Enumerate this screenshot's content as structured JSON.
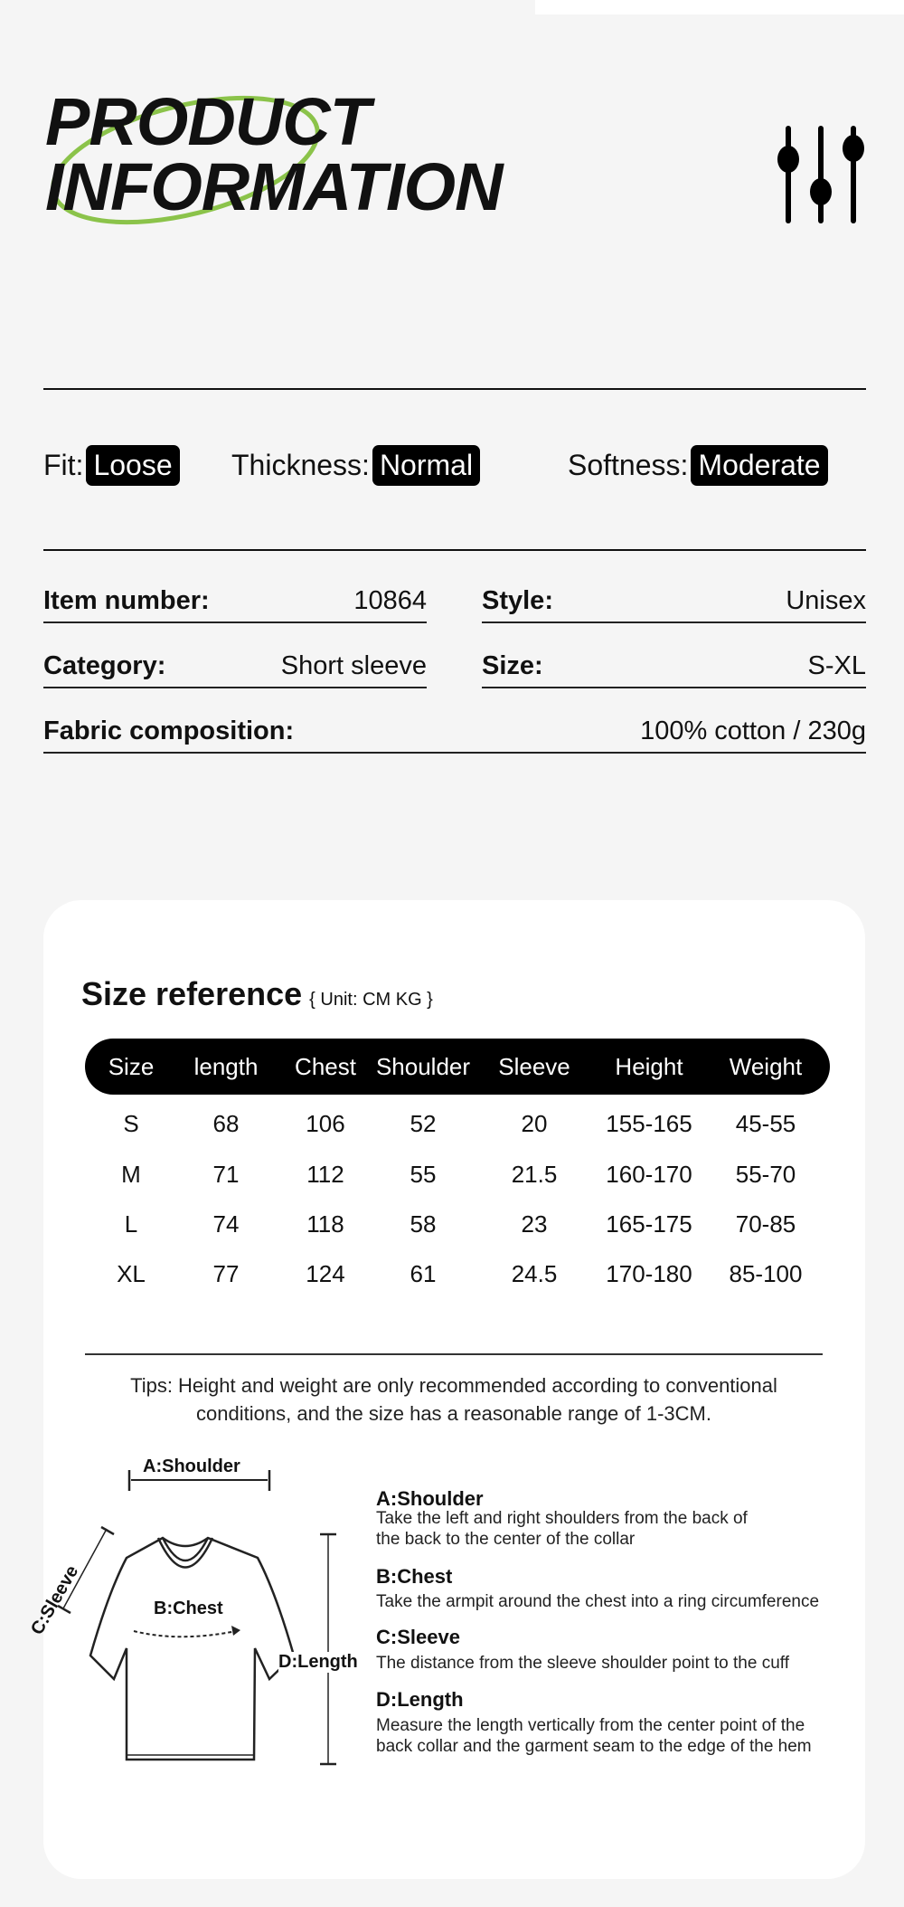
{
  "header": {
    "title_line1": "PRODUCT",
    "title_line2": "INFORMATION",
    "icon": "sliders-icon",
    "accent": "#8bc34a"
  },
  "attributes": [
    {
      "label": "Fit:",
      "value": "Loose"
    },
    {
      "label": "Thickness:",
      "value": "Normal"
    },
    {
      "label": "Softness:",
      "value": "Moderate"
    }
  ],
  "specs": {
    "item_number": {
      "label": "Item number:",
      "value": "10864"
    },
    "style": {
      "label": "Style:",
      "value": "Unisex"
    },
    "category": {
      "label": "Category:",
      "value": "Short sleeve"
    },
    "size": {
      "label": "Size:",
      "value": "S-XL"
    },
    "fabric": {
      "label": "Fabric composition:",
      "value": "100% cotton / 230g"
    }
  },
  "size_reference": {
    "title": "Size reference",
    "unit": "{ Unit: CM KG }",
    "columns": [
      "Size",
      "length",
      "Chest",
      "Shoulder",
      "Sleeve",
      "Height",
      "Weight"
    ],
    "rows": [
      [
        "S",
        "68",
        "106",
        "52",
        "20",
        "155-165",
        "45-55"
      ],
      [
        "M",
        "71",
        "112",
        "55",
        "21.5",
        "160-170",
        "55-70"
      ],
      [
        "L",
        "74",
        "118",
        "58",
        "23",
        "165-175",
        "70-85"
      ],
      [
        "XL",
        "77",
        "124",
        "61",
        "24.5",
        "170-180",
        "85-100"
      ]
    ],
    "tips_line1": "Tips: Height and weight are only recommended according to conventional",
    "tips_line2": "conditions, and the size has a reasonable range of 1-3CM."
  },
  "diagram": {
    "labels": {
      "shoulder": "A:Shoulder",
      "chest": "B:Chest",
      "sleeve": "C:Sleeve",
      "length": "D:Length"
    },
    "descriptions": [
      {
        "title": "A:Shoulder",
        "lines": [
          "Take the left and right shoulders from the back of",
          "the back to the center of the collar"
        ]
      },
      {
        "title": "B:Chest",
        "lines": [
          "Take the armpit around the chest into a ring circumference"
        ]
      },
      {
        "title": "C:Sleeve",
        "lines": [
          "The distance from the sleeve shoulder point to the cuff"
        ]
      },
      {
        "title": "D:Length",
        "lines": [
          "Measure the length vertically from the center point of the",
          "back collar and the garment seam to the edge of the hem"
        ]
      }
    ]
  }
}
